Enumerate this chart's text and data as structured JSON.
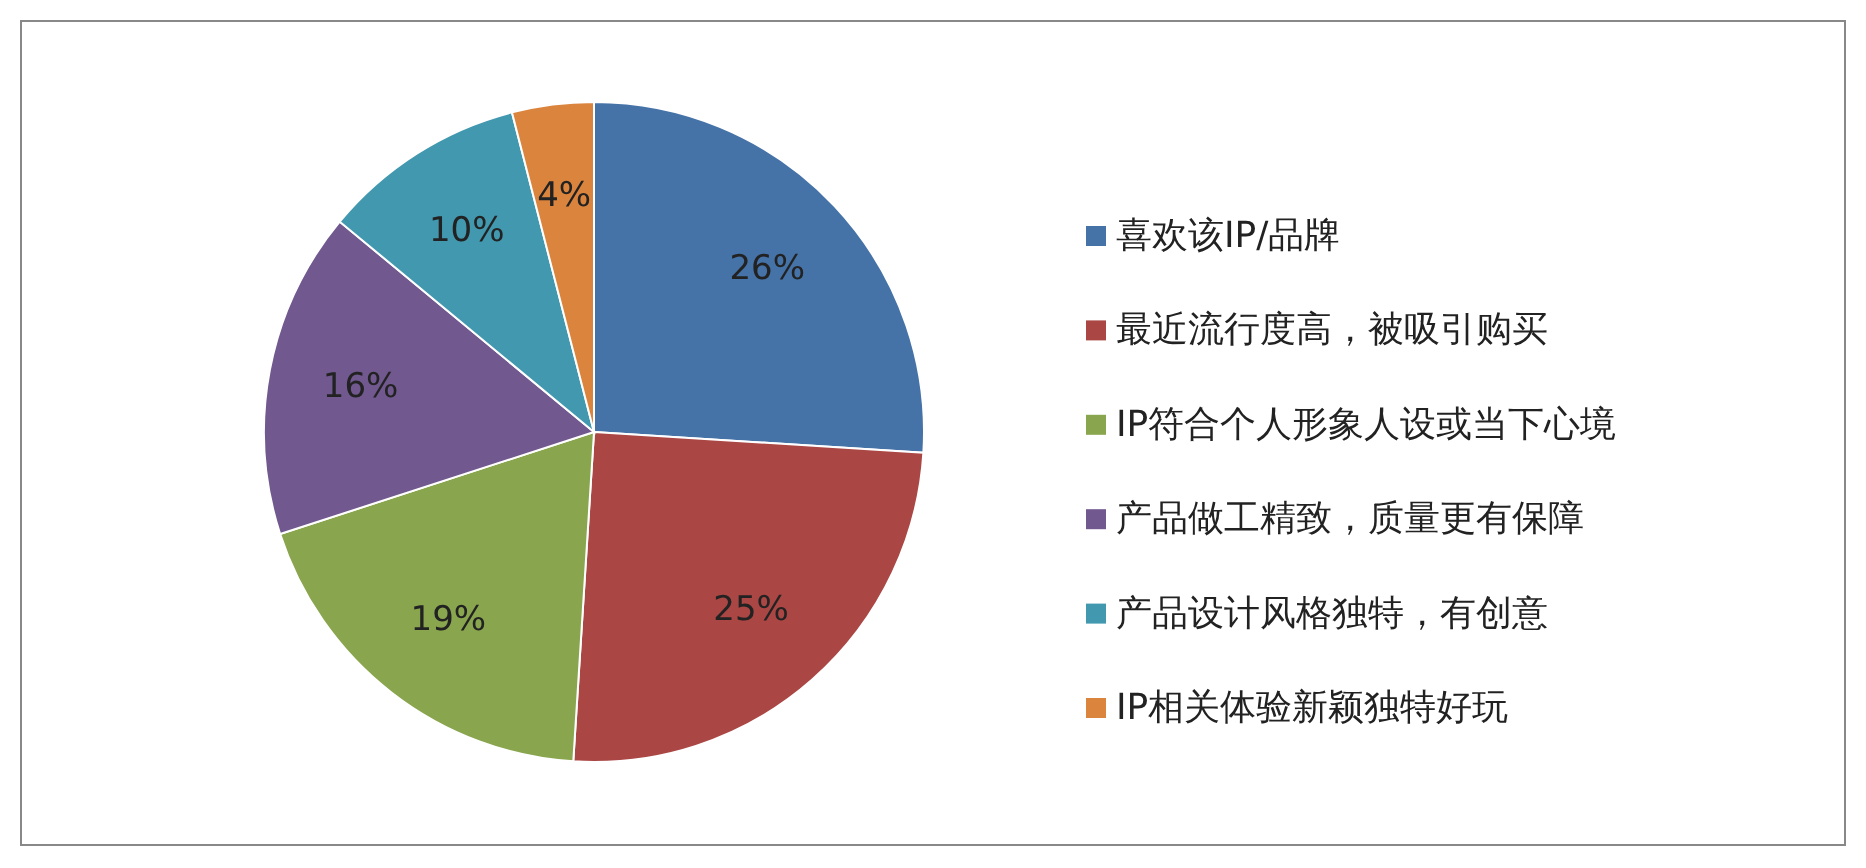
{
  "chart_data": {
    "type": "pie",
    "categories": [
      "喜欢该IP/品牌",
      "最近流行度高，被吸引购买",
      "IP符合个人形象人设或当下心境",
      "产品做工精致，质量更有保障",
      "产品设计风格独特，有创意",
      "IP相关体验新颖独特好玩"
    ],
    "values": [
      26,
      25,
      19,
      16,
      10,
      4
    ],
    "colors": [
      "#4572a7",
      "#aa4643",
      "#89a54e",
      "#71588f",
      "#4198af",
      "#db843d"
    ],
    "value_labels": [
      "26%",
      "25%",
      "19%",
      "16%",
      "10%",
      "4%"
    ],
    "legend": "right"
  }
}
